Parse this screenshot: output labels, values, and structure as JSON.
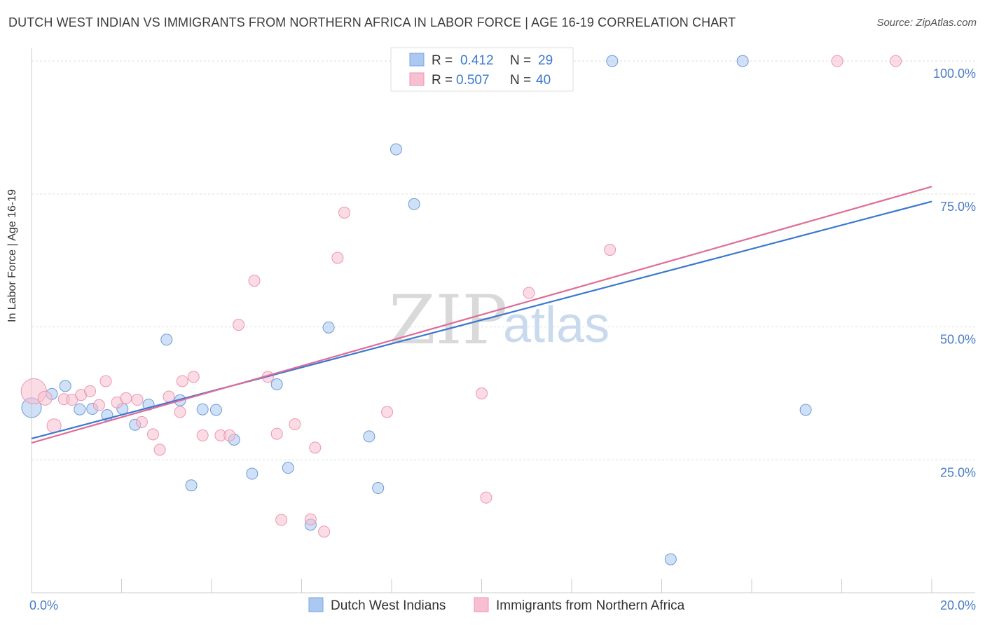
{
  "header": {
    "title": "DUTCH WEST INDIAN VS IMMIGRANTS FROM NORTHERN AFRICA IN LABOR FORCE | AGE 16-19 CORRELATION CHART",
    "source": "Source: ZipAtlas.com"
  },
  "watermark": {
    "zip": "ZIP",
    "atlas": "atlas"
  },
  "stats_legend": {
    "rows": [
      {
        "r_label": "R =",
        "r_value": "0.412",
        "n_label": "N =",
        "n_value": "29",
        "color": "#aac8f0",
        "stroke": "#7aa6e0"
      },
      {
        "r_label": "R =",
        "r_value": "0.507",
        "n_label": "N =",
        "n_value": "40",
        "color": "#f8bfd0",
        "stroke": "#ee94b0"
      }
    ]
  },
  "chart_data": {
    "type": "scatter",
    "title": "DUTCH WEST INDIAN VS IMMIGRANTS FROM NORTHERN AFRICA IN LABOR FORCE | AGE 16-19 CORRELATION CHART",
    "xlabel": "",
    "ylabel": "In Labor Force | Age 16-19",
    "xlim": [
      0,
      20
    ],
    "ylim": [
      0,
      102
    ],
    "x_tick_labels": [
      "0.0%",
      "20.0%"
    ],
    "y_ticks": [
      25,
      50,
      75,
      100
    ],
    "y_tick_labels": [
      "25.0%",
      "50.0%",
      "75.0%",
      "100.0%"
    ],
    "grid": "horizontal dashed",
    "legend_position": "bottom",
    "series": [
      {
        "name": "Dutch West Indians",
        "color": "#aac8f0",
        "stroke": "#6a9ad8",
        "line_color": "#3a78d0",
        "trend": [
          [
            0,
            29.0
          ],
          [
            20,
            73.6
          ]
        ],
        "points": [
          [
            0.0,
            34.8,
            14
          ],
          [
            0.45,
            37.4,
            8
          ],
          [
            0.75,
            38.9,
            8
          ],
          [
            1.07,
            34.5,
            8
          ],
          [
            1.35,
            34.6,
            8
          ],
          [
            1.68,
            33.4,
            8
          ],
          [
            2.02,
            34.6,
            8
          ],
          [
            2.3,
            31.6,
            8
          ],
          [
            2.6,
            35.4,
            8
          ],
          [
            3.0,
            47.6,
            8
          ],
          [
            3.3,
            36.2,
            8
          ],
          [
            3.55,
            20.2,
            8
          ],
          [
            3.8,
            34.5,
            8
          ],
          [
            4.1,
            34.4,
            8
          ],
          [
            4.5,
            28.8,
            8
          ],
          [
            4.9,
            22.4,
            8
          ],
          [
            5.45,
            39.2,
            8
          ],
          [
            5.7,
            23.5,
            8
          ],
          [
            6.2,
            12.8,
            8
          ],
          [
            6.6,
            49.9,
            8
          ],
          [
            7.5,
            29.4,
            8
          ],
          [
            7.7,
            19.7,
            8
          ],
          [
            8.1,
            83.4,
            8
          ],
          [
            8.5,
            73.1,
            8
          ],
          [
            8.75,
            100.0,
            8
          ],
          [
            12.9,
            100.0,
            8
          ],
          [
            14.2,
            6.3,
            8
          ],
          [
            15.8,
            100.0,
            8
          ],
          [
            17.2,
            34.4,
            8
          ]
        ]
      },
      {
        "name": "Immigrants from Northern Africa",
        "color": "#f8bfd0",
        "stroke": "#ee94b0",
        "line_color": "#e06c98",
        "trend": [
          [
            0,
            28.2
          ],
          [
            20,
            76.4
          ]
        ],
        "points": [
          [
            0.05,
            37.9,
            18
          ],
          [
            0.3,
            36.6,
            10
          ],
          [
            0.5,
            31.4,
            10
          ],
          [
            0.72,
            36.4,
            8
          ],
          [
            0.9,
            36.3,
            8
          ],
          [
            1.1,
            37.2,
            8
          ],
          [
            1.3,
            37.9,
            8
          ],
          [
            1.5,
            35.3,
            8
          ],
          [
            1.65,
            39.8,
            8
          ],
          [
            1.9,
            35.8,
            8
          ],
          [
            2.1,
            36.6,
            8
          ],
          [
            2.35,
            36.3,
            8
          ],
          [
            2.45,
            32.1,
            8
          ],
          [
            2.7,
            29.8,
            8
          ],
          [
            2.85,
            26.9,
            8
          ],
          [
            3.05,
            36.9,
            8
          ],
          [
            3.3,
            34.0,
            8
          ],
          [
            3.35,
            39.8,
            8
          ],
          [
            3.6,
            40.6,
            8
          ],
          [
            3.8,
            29.6,
            8
          ],
          [
            4.2,
            29.6,
            8
          ],
          [
            4.4,
            29.6,
            8
          ],
          [
            4.6,
            50.4,
            8
          ],
          [
            4.95,
            58.7,
            8
          ],
          [
            5.25,
            40.6,
            8
          ],
          [
            5.45,
            29.9,
            8
          ],
          [
            5.55,
            13.7,
            8
          ],
          [
            5.85,
            31.7,
            8
          ],
          [
            6.2,
            13.8,
            8
          ],
          [
            6.3,
            27.3,
            8
          ],
          [
            6.5,
            11.5,
            8
          ],
          [
            6.8,
            63.0,
            8
          ],
          [
            6.95,
            71.5,
            8
          ],
          [
            7.9,
            34.0,
            8
          ],
          [
            10.0,
            37.5,
            8
          ],
          [
            10.1,
            17.9,
            8
          ],
          [
            11.05,
            56.4,
            8
          ],
          [
            12.85,
            64.5,
            8
          ],
          [
            17.9,
            100.0,
            8
          ],
          [
            19.2,
            100.0,
            8
          ]
        ]
      }
    ]
  }
}
